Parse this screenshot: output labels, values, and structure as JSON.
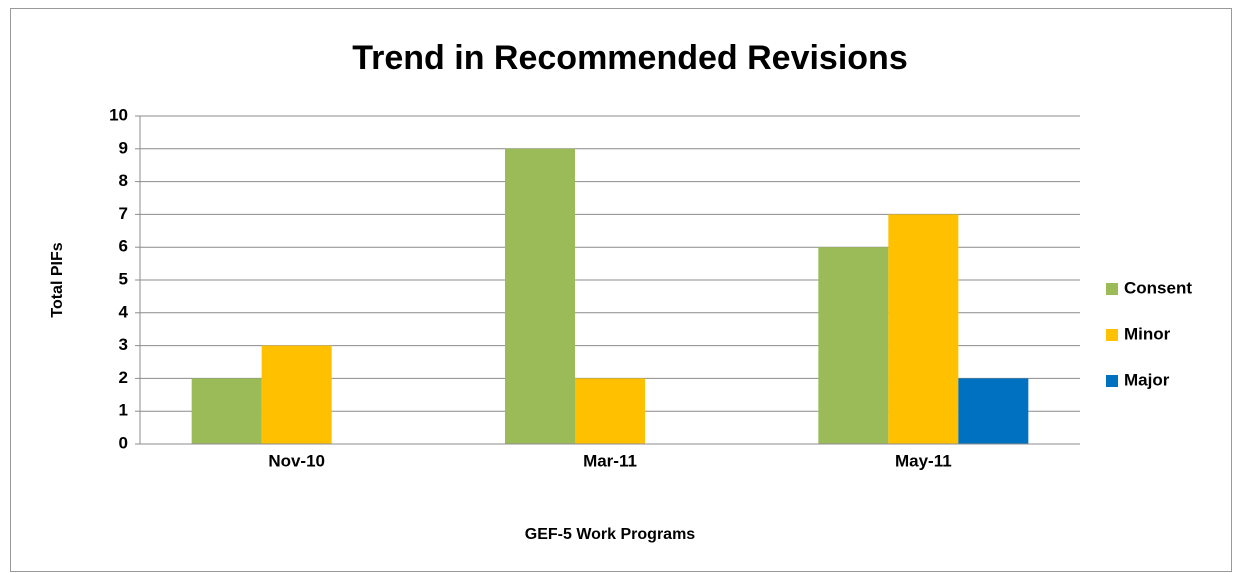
{
  "chart_data": {
    "type": "bar",
    "title": "Trend in Recommended Revisions",
    "x_label": "GEF-5 Work Programs",
    "y_label": "Total PIFs",
    "categories": [
      "Nov-10",
      "Mar-11",
      "May-11"
    ],
    "series": [
      {
        "name": "Consent",
        "color": "#9bbb59",
        "values": [
          2,
          9,
          6
        ]
      },
      {
        "name": "Minor",
        "color": "#ffc000",
        "values": [
          3,
          2,
          7
        ]
      },
      {
        "name": "Major",
        "color": "#0070c0",
        "values": [
          0,
          0,
          2
        ]
      }
    ],
    "ylim": [
      0,
      10
    ],
    "yticks": [
      0,
      1,
      2,
      3,
      4,
      5,
      6,
      7,
      8,
      9,
      10
    ],
    "grid": true,
    "legend": "right"
  }
}
